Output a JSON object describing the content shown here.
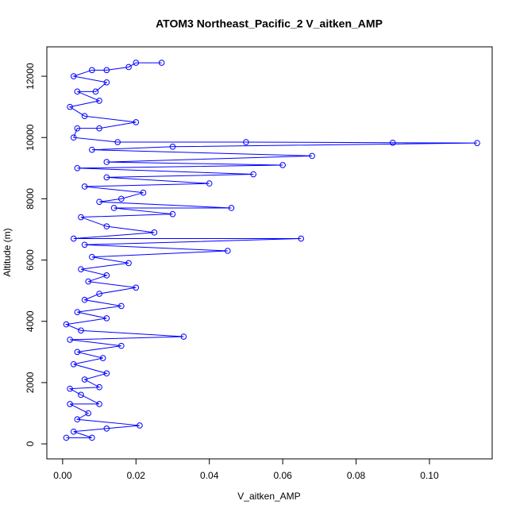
{
  "chart_data": {
    "type": "line",
    "title": "ATOM3 Northeast_Pacific_2 V_aitken_AMP",
    "x_label": "V_aitken_AMP",
    "y_label": "Altitude (m)",
    "color": "#0000ff",
    "markers": true,
    "x": [
      0.001,
      0.008,
      0.003,
      0.012,
      0.021,
      0.004,
      0.007,
      0.002,
      0.01,
      0.005,
      0.002,
      0.01,
      0.006,
      0.012,
      0.003,
      0.011,
      0.004,
      0.016,
      0.002,
      0.033,
      0.005,
      0.001,
      0.012,
      0.004,
      0.016,
      0.006,
      0.01,
      0.02,
      0.007,
      0.012,
      0.005,
      0.018,
      0.008,
      0.045,
      0.006,
      0.065,
      0.003,
      0.025,
      0.012,
      0.005,
      0.03,
      0.014,
      0.046,
      0.01,
      0.016,
      0.022,
      0.006,
      0.04,
      0.012,
      0.052,
      0.004,
      0.06,
      0.012,
      0.068,
      0.008,
      0.03,
      0.113,
      0.09,
      0.05,
      0.015,
      0.003,
      0.004,
      0.01,
      0.02,
      0.006,
      0.002,
      0.01,
      0.004,
      0.009,
      0.012,
      0.003,
      0.008,
      0.012,
      0.018,
      0.02,
      0.027
    ],
    "values": [
      200,
      200,
      400,
      500,
      600,
      800,
      1000,
      1300,
      1300,
      1600,
      1800,
      1850,
      2100,
      2300,
      2600,
      2800,
      3000,
      3200,
      3400,
      3500,
      3700,
      3900,
      4100,
      4300,
      4500,
      4700,
      4900,
      5100,
      5300,
      5500,
      5700,
      5900,
      6100,
      6300,
      6500,
      6700,
      6700,
      6900,
      7100,
      7400,
      7500,
      7700,
      7700,
      7900,
      8000,
      8200,
      8400,
      8500,
      8700,
      8800,
      9000,
      9100,
      9200,
      9400,
      9600,
      9700,
      9820,
      9830,
      9850,
      9850,
      10000,
      10300,
      10300,
      10500,
      10700,
      11000,
      11200,
      11500,
      11500,
      11800,
      12000,
      12200,
      12200,
      12300,
      12440,
      12440
    ],
    "xlim": [
      -0.0043,
      0.1171
    ],
    "ylim": [
      -490,
      12960
    ],
    "xticks": [
      {
        "value": 0,
        "label": "0.00"
      },
      {
        "value": 0.02,
        "label": "0.02"
      },
      {
        "value": 0.04,
        "label": "0.04"
      },
      {
        "value": 0.06,
        "label": "0.06"
      },
      {
        "value": 0.08,
        "label": "0.08"
      },
      {
        "value": 0.1,
        "label": "0.10"
      }
    ],
    "yticks": [
      0,
      2000,
      4000,
      6000,
      8000,
      10000,
      12000
    ]
  }
}
